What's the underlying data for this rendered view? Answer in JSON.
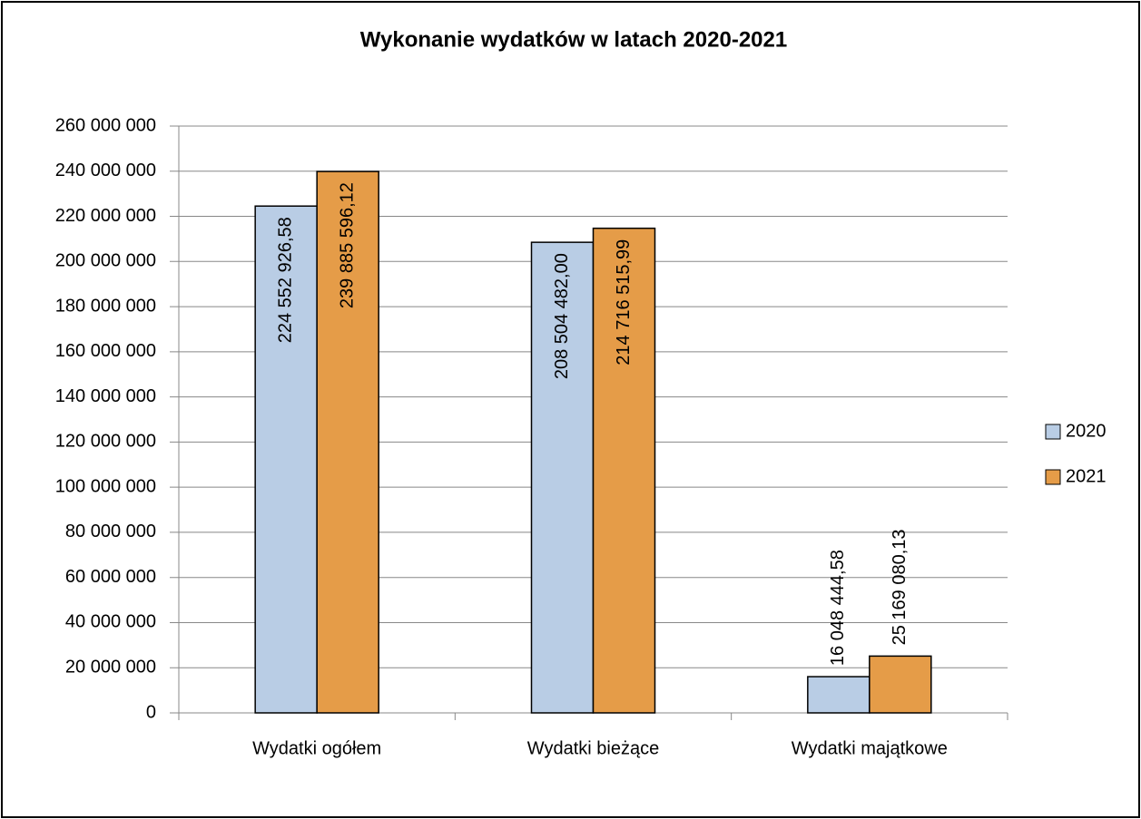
{
  "chart_data": {
    "type": "bar",
    "title": "Wykonanie wydatków w latach 2020-2021",
    "categories": [
      "Wydatki ogółem",
      "Wydatki bieżące",
      "Wydatki majątkowe"
    ],
    "series": [
      {
        "name": "2020",
        "color": "#b9cde5",
        "values": [
          224552926.58,
          208504482.0,
          16048444.58
        ],
        "value_labels": [
          "224 552 926,58",
          "208 504 482,00",
          "16 048 444,58"
        ]
      },
      {
        "name": "2021",
        "color": "#e59c48",
        "values": [
          239885596.12,
          214716515.99,
          25169080.13
        ],
        "value_labels": [
          "239 885 596,12",
          "214 716 515,99",
          "25 169 080,13"
        ]
      }
    ],
    "ylim": [
      0,
      260000000
    ],
    "yticks": [
      0,
      {
        "value": 20000000,
        "label": "20 000 000"
      },
      {
        "value": 40000000,
        "label": "40 000 000"
      },
      {
        "value": 60000000,
        "label": "60 000 000"
      },
      {
        "value": 80000000,
        "label": "80 000 000"
      },
      {
        "value": 100000000,
        "label": "100 000 000"
      },
      {
        "value": 120000000,
        "label": "120 000 000"
      },
      {
        "value": 140000000,
        "label": "140 000 000"
      },
      {
        "value": 160000000,
        "label": "160 000 000"
      },
      {
        "value": 180000000,
        "label": "180 000 000"
      },
      {
        "value": 200000000,
        "label": "200 000 000"
      },
      {
        "value": 220000000,
        "label": "220 000 000"
      },
      {
        "value": 240000000,
        "label": "240 000 000"
      },
      {
        "value": 260000000,
        "label": "260 000 000"
      }
    ],
    "grid": true,
    "legend": "right"
  }
}
